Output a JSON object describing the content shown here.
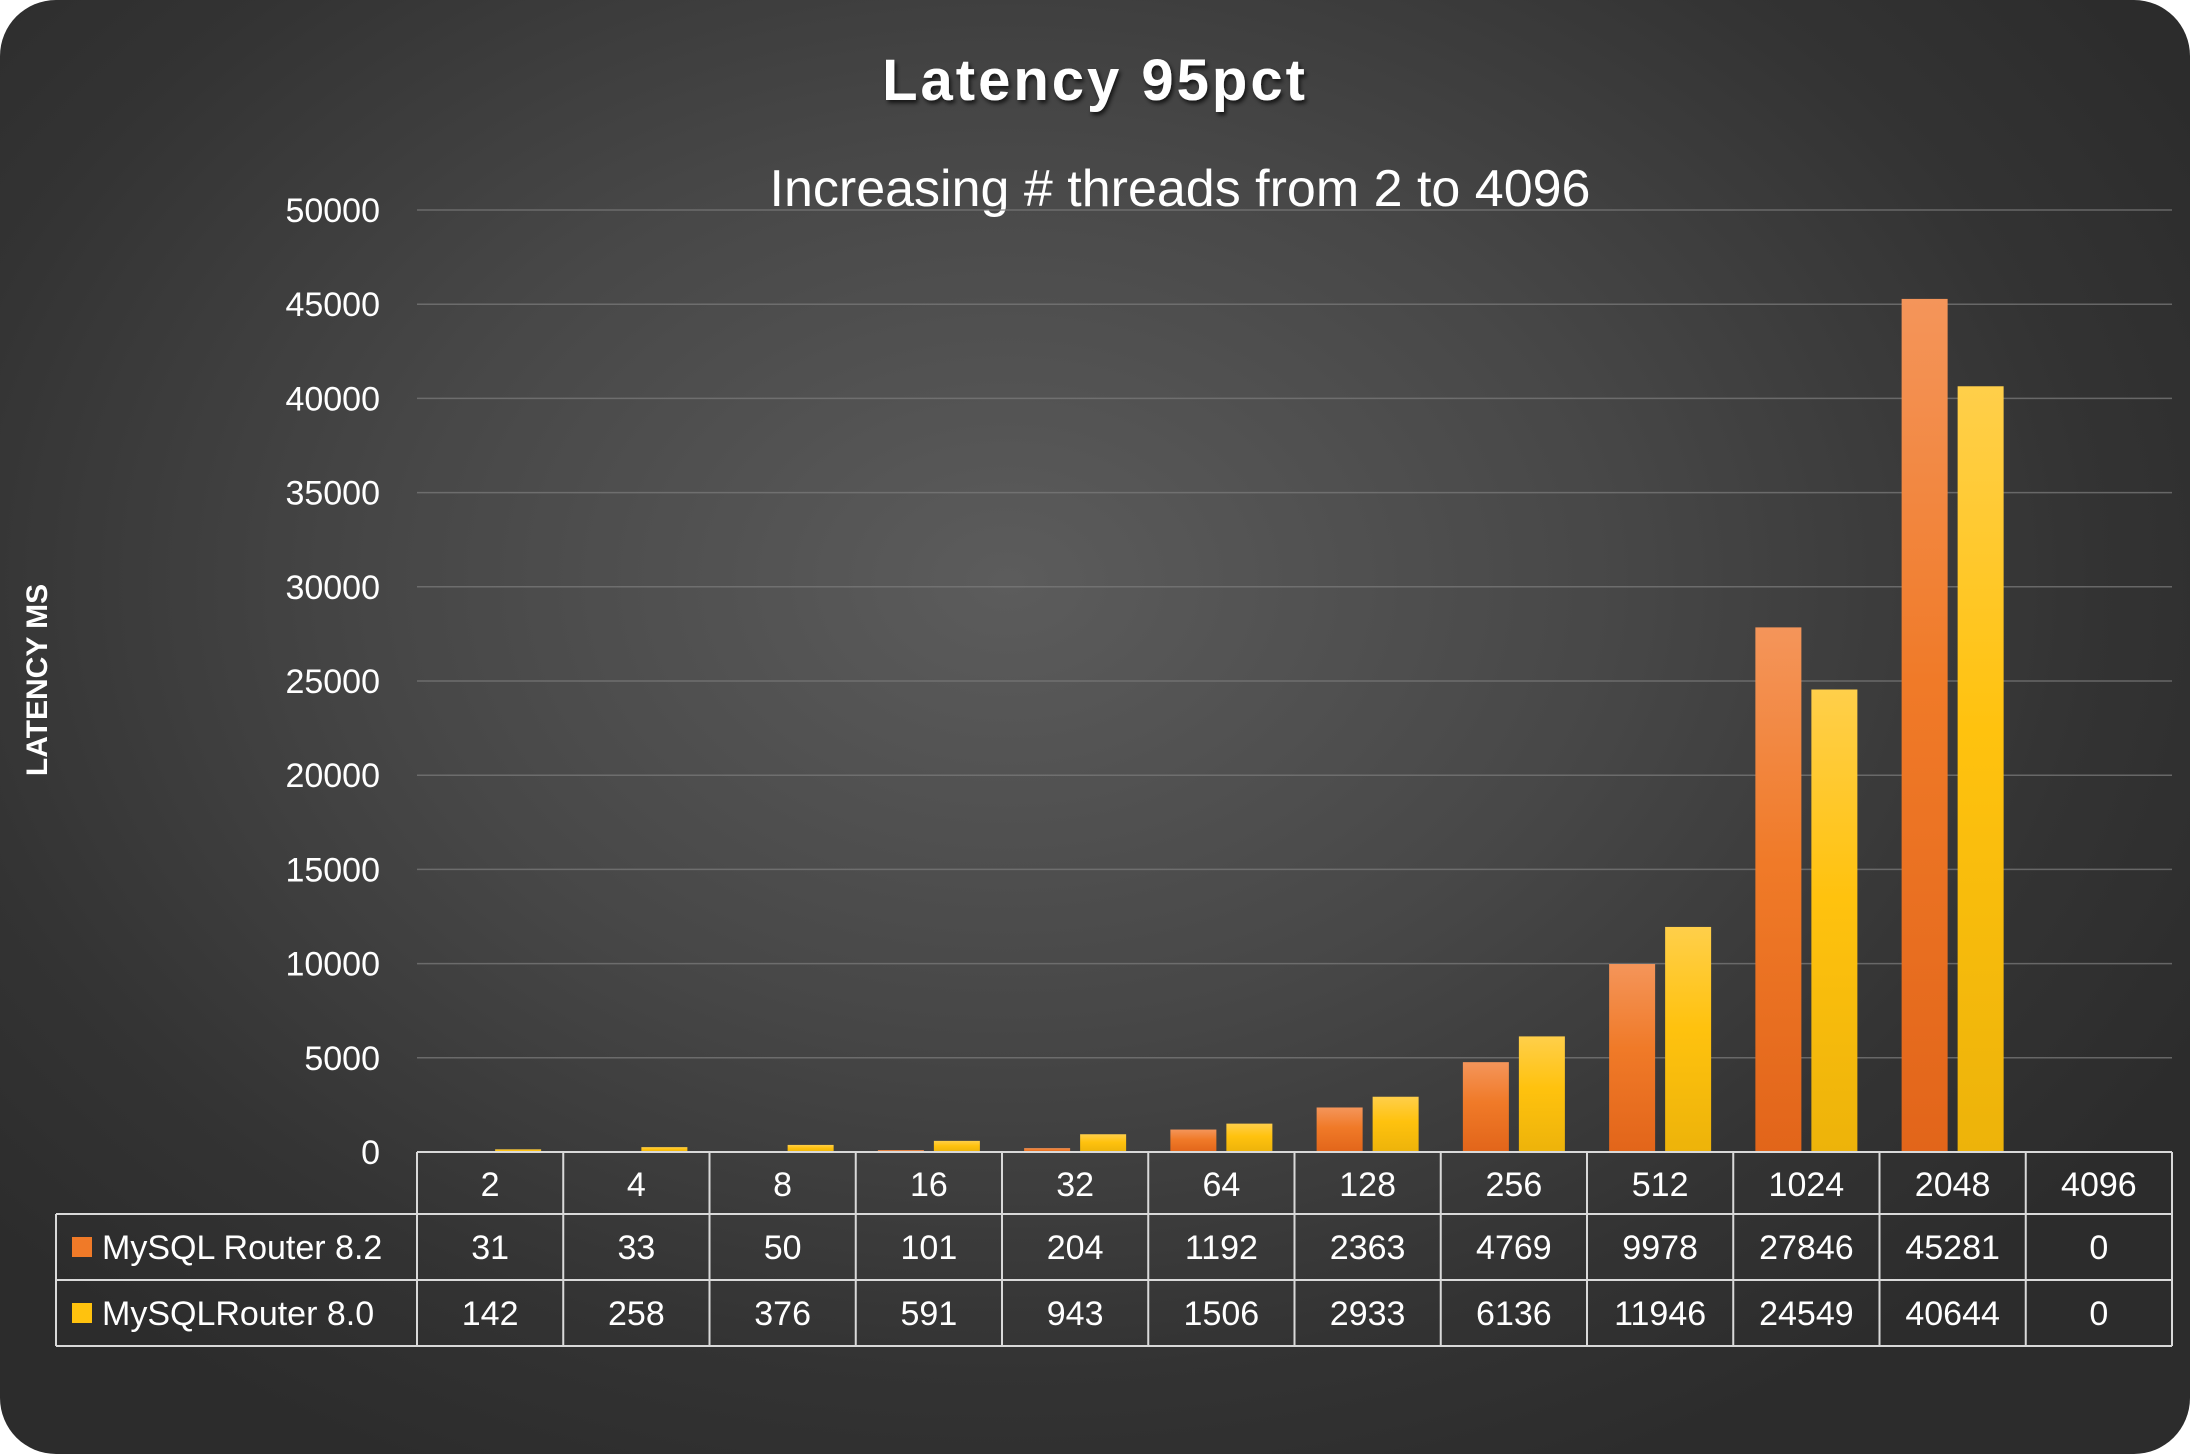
{
  "chart_data": {
    "type": "bar",
    "title": "Latency 95pct",
    "subtitle": "Increasing # threads from 2 to 4096",
    "xlabel": "",
    "ylabel": "LATENCY MS",
    "ylim": [
      0,
      50000
    ],
    "yticks": [
      0,
      5000,
      10000,
      15000,
      20000,
      25000,
      30000,
      35000,
      40000,
      45000,
      50000
    ],
    "grid": true,
    "legend": "data-table",
    "categories": [
      "2",
      "4",
      "8",
      "16",
      "32",
      "64",
      "128",
      "256",
      "512",
      "1024",
      "2048",
      "4096"
    ],
    "series": [
      {
        "name": "MySQL Router 8.2",
        "color": "#F07A28",
        "values": [
          31,
          33,
          50,
          101,
          204,
          1192,
          2363,
          4769,
          9978,
          27846,
          45281,
          0
        ]
      },
      {
        "name": "MySQLRouter 8.0",
        "color": "#FFC20E",
        "values": [
          142,
          258,
          376,
          591,
          943,
          1506,
          2933,
          6136,
          11946,
          24549,
          40644,
          0
        ]
      }
    ]
  }
}
